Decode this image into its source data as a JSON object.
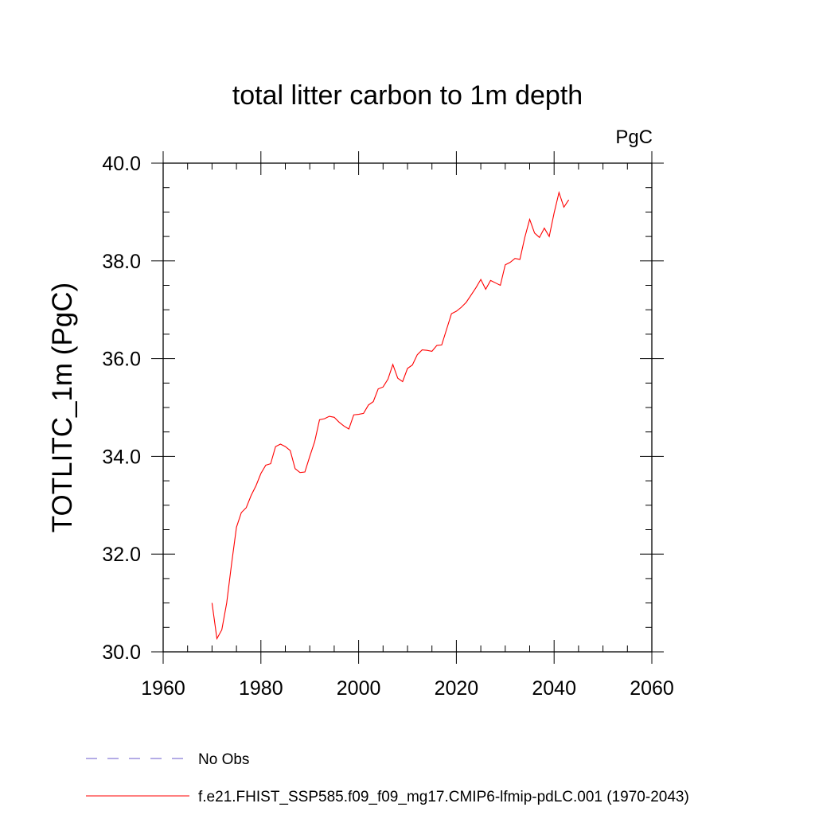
{
  "chart_data": {
    "type": "line",
    "title": "total litter carbon to 1m depth",
    "units_label": "PgC",
    "ylabel": "TOTLITC_1m  (PgC)",
    "xlabel": "",
    "xlim": [
      1960,
      2060
    ],
    "ylim": [
      30.0,
      40.0
    ],
    "x_ticks": [
      1960,
      1980,
      2000,
      2020,
      2040,
      2060
    ],
    "x_tick_labels": [
      "1960",
      "1980",
      "2000",
      "2020",
      "2040",
      "2060"
    ],
    "y_ticks": [
      30.0,
      32.0,
      34.0,
      36.0,
      38.0,
      40.0
    ],
    "y_tick_labels": [
      "30.0",
      "32.0",
      "34.0",
      "36.0",
      "38.0",
      "40.0"
    ],
    "grid": false,
    "legend_position": "bottom-left, below plot",
    "series": [
      {
        "name": "No Obs",
        "color": "#6a5acd",
        "dash": "dashed",
        "x": [],
        "y": []
      },
      {
        "name": "f.e21.FHIST_SSP585.f09_f09_mg17.CMIP6-lfmip-pdLC.001 (1970-2043)",
        "color": "#ff0000",
        "dash": "solid",
        "x": [
          1970,
          1971,
          1972,
          1973,
          1974,
          1975,
          1976,
          1977,
          1978,
          1979,
          1980,
          1981,
          1982,
          1983,
          1984,
          1985,
          1986,
          1987,
          1988,
          1989,
          1990,
          1991,
          1992,
          1993,
          1994,
          1995,
          1996,
          1997,
          1998,
          1999,
          2000,
          2001,
          2002,
          2003,
          2004,
          2005,
          2006,
          2007,
          2008,
          2009,
          2010,
          2011,
          2012,
          2013,
          2014,
          2015,
          2016,
          2017,
          2018,
          2019,
          2020,
          2021,
          2022,
          2023,
          2024,
          2025,
          2026,
          2027,
          2028,
          2029,
          2030,
          2031,
          2032,
          2033,
          2034,
          2035,
          2036,
          2037,
          2038,
          2039,
          2040,
          2041,
          2042,
          2043
        ],
        "y": [
          31.0,
          30.27,
          30.45,
          31.0,
          31.8,
          32.55,
          32.85,
          32.95,
          33.2,
          33.4,
          33.65,
          33.82,
          33.85,
          34.2,
          34.25,
          34.2,
          34.12,
          33.75,
          33.67,
          33.68,
          34.0,
          34.3,
          34.75,
          34.77,
          34.82,
          34.8,
          34.7,
          34.62,
          34.56,
          34.85,
          34.86,
          34.88,
          35.05,
          35.12,
          35.38,
          35.42,
          35.58,
          35.88,
          35.6,
          35.53,
          35.8,
          35.87,
          36.08,
          36.18,
          36.17,
          36.15,
          36.27,
          36.28,
          36.6,
          36.92,
          36.97,
          37.05,
          37.15,
          37.3,
          37.45,
          37.62,
          37.42,
          37.6,
          37.55,
          37.5,
          37.92,
          37.97,
          38.05,
          38.03,
          38.48,
          38.85,
          38.57,
          38.48,
          38.67,
          38.5,
          38.98,
          39.4,
          39.1,
          39.25
        ]
      }
    ]
  }
}
